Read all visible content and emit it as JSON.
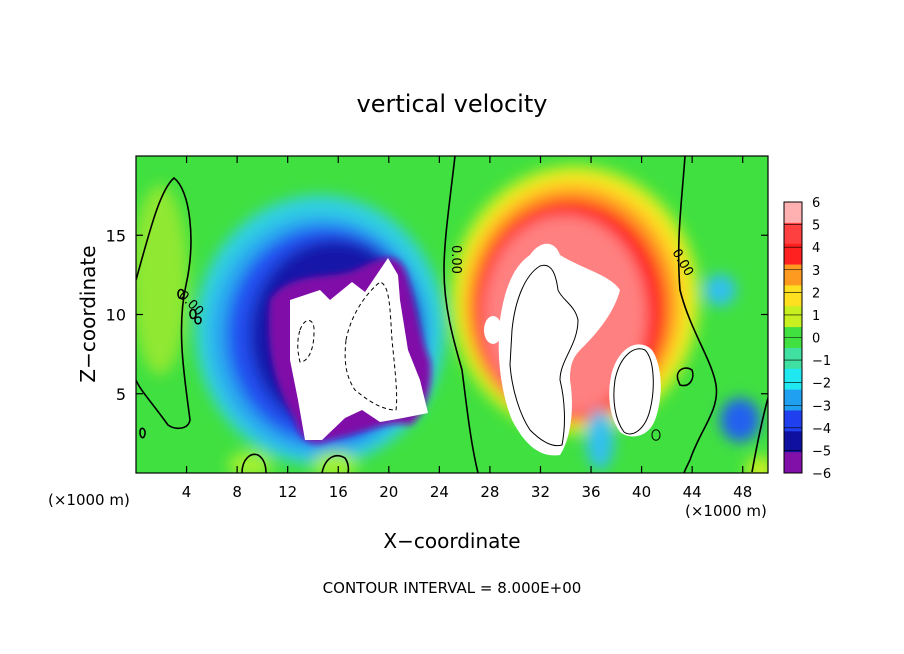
{
  "chart_data": {
    "type": "heatmap",
    "title": "vertical velocity",
    "xlabel": "X−coordinate",
    "ylabel": "Z−coordinate",
    "x_unit_left": "(×1000 m)",
    "x_unit_right": "(×1000 m)",
    "footer": "CONTOUR INTERVAL = 8.000E+00",
    "xlim": [
      0,
      50
    ],
    "ylim": [
      0,
      20
    ],
    "x_ticks": [
      4,
      8,
      12,
      16,
      20,
      24,
      28,
      32,
      36,
      40,
      44,
      48
    ],
    "x_tick_labels": [
      "4",
      "8",
      "12",
      "16",
      "20",
      "24",
      "28",
      "32",
      "36",
      "40",
      "44",
      "48"
    ],
    "y_ticks": [
      5,
      10,
      15
    ],
    "y_tick_labels": [
      "5",
      "10",
      "15"
    ],
    "contour_labels": [
      "0.00",
      "0.00",
      "0.00"
    ],
    "colorbar": {
      "levels": [
        6,
        5,
        4,
        3,
        2,
        1,
        0,
        -1,
        -2,
        -3,
        -4,
        -5,
        -6
      ],
      "labels": [
        "6",
        "5",
        "4",
        "3",
        "2",
        "1",
        "0",
        "−1",
        "−2",
        "−3",
        "−4",
        "−5",
        "−6"
      ],
      "colors": [
        "#ffb0b0",
        "#ff4040",
        "#ff2020",
        "#ff9a20",
        "#ffe020",
        "#c8f020",
        "#40e040",
        "#40e0a0",
        "#20e8f0",
        "#20a0f0",
        "#2040f0",
        "#1010a0",
        "#8010a8"
      ],
      "out_of_range_color": "#ffffff",
      "background_color": "#40e040"
    }
  }
}
